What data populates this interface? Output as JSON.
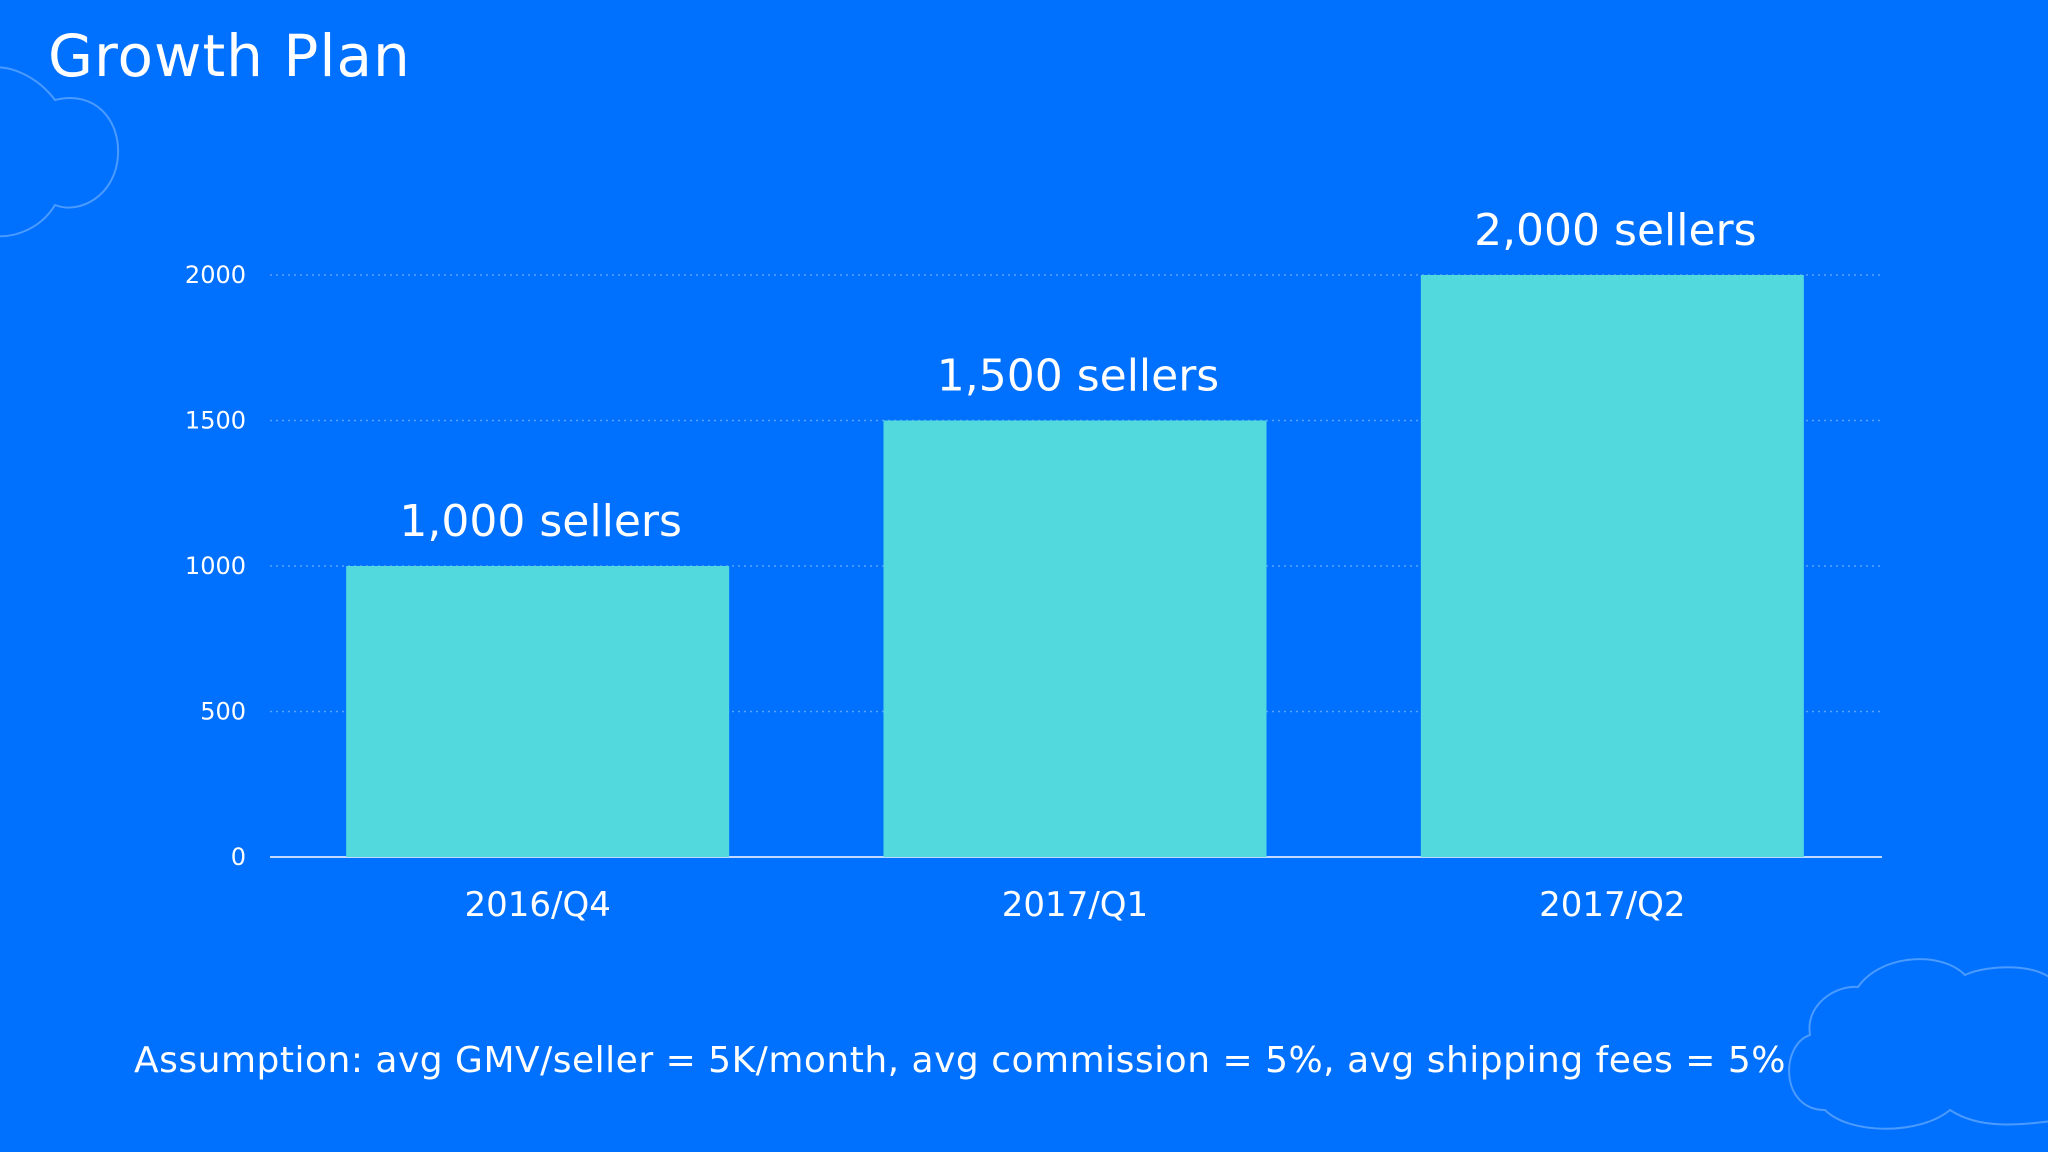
{
  "slide": {
    "title": "Growth Plan",
    "footnote": "Assumption: avg GMV/seller = 5K/month, avg commission = 5%, avg shipping fees = 5%"
  },
  "colors": {
    "background": "#0070FF",
    "bar": "#52D9DE",
    "text": "#FFFFFF",
    "grid": "#5AA2FF",
    "cloud_outline": "#4B9BFF"
  },
  "icons": [
    "cloud-top-left",
    "cloud-bottom-right"
  ],
  "chart_data": {
    "type": "bar",
    "categories": [
      "2016/Q4",
      "2017/Q1",
      "2017/Q2"
    ],
    "values": [
      1000,
      1500,
      2000
    ],
    "data_labels": [
      "1,000 sellers",
      "1,500 sellers",
      "2,000 sellers"
    ],
    "y_ticks": [
      "0",
      "500",
      "1000",
      "1500",
      "2000"
    ],
    "y_tick_values": [
      0,
      500,
      1000,
      1500,
      2000
    ],
    "ylim": [
      0,
      2000
    ],
    "grid": true,
    "grid_style": "dotted",
    "legend": false
  }
}
